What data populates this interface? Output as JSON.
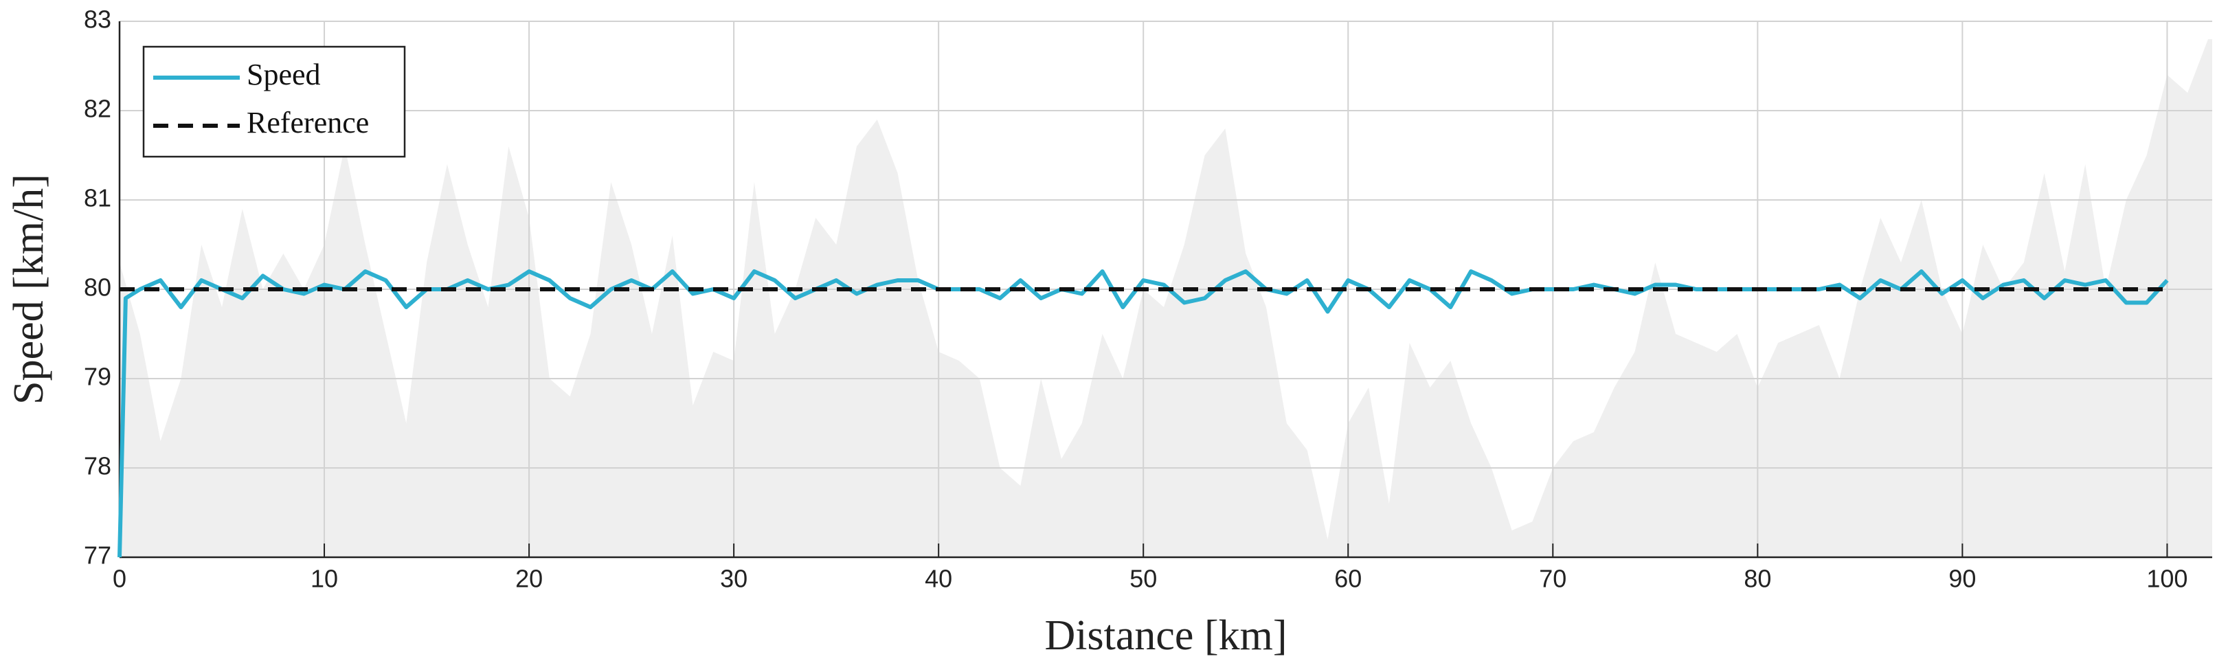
{
  "chart_data": {
    "type": "line",
    "xlabel": "Distance [km]",
    "ylabel": "Speed [km/h]",
    "xlim": [
      0,
      102.2
    ],
    "ylim": [
      77,
      83
    ],
    "xticks": [
      0,
      10,
      20,
      30,
      40,
      50,
      60,
      70,
      80,
      90,
      100
    ],
    "yticks": [
      77,
      78,
      79,
      80,
      81,
      82,
      83
    ],
    "grid": true,
    "legend": "upper left",
    "background_area": {
      "color": "#efefef",
      "x": [
        0,
        1,
        2,
        3,
        4,
        5,
        6,
        7,
        8,
        9,
        10,
        11,
        12,
        13,
        14,
        15,
        16,
        17,
        18,
        19,
        20,
        21,
        22,
        23,
        24,
        25,
        26,
        27,
        28,
        29,
        30,
        31,
        32,
        33,
        34,
        35,
        36,
        37,
        38,
        39,
        40,
        41,
        42,
        43,
        44,
        45,
        46,
        47,
        48,
        49,
        50,
        51,
        52,
        53,
        54,
        55,
        56,
        57,
        58,
        59,
        60,
        61,
        62,
        63,
        64,
        65,
        66,
        67,
        68,
        69,
        70,
        71,
        72,
        73,
        74,
        75,
        76,
        77,
        78,
        79,
        80,
        81,
        82,
        83,
        84,
        85,
        86,
        87,
        88,
        89,
        90,
        91,
        92,
        93,
        94,
        95,
        96,
        97,
        98,
        99,
        100,
        101,
        102,
        102.2
      ],
      "values": [
        80.3,
        79.5,
        78.3,
        79.0,
        80.5,
        79.8,
        80.9,
        80.0,
        80.4,
        80.0,
        80.5,
        81.6,
        80.5,
        79.5,
        78.5,
        80.3,
        81.4,
        80.5,
        79.8,
        81.6,
        80.8,
        79.0,
        78.8,
        79.5,
        81.2,
        80.5,
        79.5,
        80.6,
        78.7,
        79.3,
        79.2,
        81.2,
        79.5,
        80.0,
        80.8,
        80.5,
        81.6,
        81.9,
        81.3,
        80.1,
        79.3,
        79.2,
        79.0,
        78.0,
        77.8,
        79.0,
        78.1,
        78.5,
        79.5,
        79.0,
        80.0,
        79.8,
        80.5,
        81.5,
        81.8,
        80.4,
        79.8,
        78.5,
        78.2,
        77.2,
        78.5,
        78.9,
        77.6,
        79.4,
        78.9,
        79.2,
        78.5,
        78.0,
        77.3,
        77.4,
        78.0,
        78.3,
        78.4,
        78.9,
        79.3,
        80.3,
        79.5,
        79.4,
        79.3,
        79.5,
        78.9,
        79.4,
        79.5,
        79.6,
        79.0,
        80.0,
        80.8,
        80.3,
        81.0,
        80.0,
        79.5,
        80.5,
        80.0,
        80.3,
        81.3,
        80.2,
        81.4,
        80.0,
        81.0,
        81.5,
        82.4,
        82.2,
        82.8,
        82.8
      ]
    },
    "series": [
      {
        "name": "Speed",
        "color": "#2eb0d0",
        "dash": "solid",
        "x": [
          0,
          0.3,
          1,
          2,
          3,
          4,
          5,
          6,
          7,
          8,
          9,
          10,
          11,
          12,
          13,
          14,
          15,
          16,
          17,
          18,
          19,
          20,
          21,
          22,
          23,
          24,
          25,
          26,
          27,
          28,
          29,
          30,
          31,
          32,
          33,
          34,
          35,
          36,
          37,
          38,
          39,
          40,
          41,
          42,
          43,
          44,
          45,
          46,
          47,
          48,
          49,
          50,
          51,
          52,
          53,
          54,
          55,
          56,
          57,
          58,
          59,
          60,
          61,
          62,
          63,
          64,
          65,
          66,
          67,
          68,
          69,
          70,
          71,
          72,
          73,
          74,
          75,
          76,
          77,
          78,
          79,
          80,
          81,
          82,
          83,
          84,
          85,
          86,
          87,
          88,
          89,
          90,
          91,
          92,
          93,
          94,
          95,
          96,
          97,
          98,
          99,
          100
        ],
        "values": [
          77,
          79.9,
          80.0,
          80.1,
          79.8,
          80.1,
          80.0,
          79.9,
          80.15,
          80.0,
          79.95,
          80.05,
          80.0,
          80.2,
          80.1,
          79.8,
          80.0,
          80.0,
          80.1,
          80.0,
          80.05,
          80.2,
          80.1,
          79.9,
          79.8,
          80.0,
          80.1,
          80.0,
          80.2,
          79.95,
          80.0,
          79.9,
          80.2,
          80.1,
          79.9,
          80.0,
          80.1,
          79.95,
          80.05,
          80.1,
          80.1,
          80.0,
          80.0,
          80.0,
          79.9,
          80.1,
          79.9,
          80.0,
          79.95,
          80.2,
          79.8,
          80.1,
          80.05,
          79.85,
          79.9,
          80.1,
          80.2,
          80.0,
          79.95,
          80.1,
          79.75,
          80.1,
          80.0,
          79.8,
          80.1,
          80.0,
          79.8,
          80.2,
          80.1,
          79.95,
          80.0,
          80.0,
          80.0,
          80.05,
          80.0,
          79.95,
          80.05,
          80.05,
          80.0,
          80.0,
          80.0,
          80.0,
          80.0,
          80.0,
          80.0,
          80.05,
          79.9,
          80.1,
          80.0,
          80.2,
          79.95,
          80.1,
          79.9,
          80.05,
          80.1,
          79.9,
          80.1,
          80.05,
          80.1,
          79.85,
          79.85,
          80.1
        ]
      },
      {
        "name": "Reference",
        "color": "#111111",
        "dash": "dashed",
        "x": [
          0,
          100
        ],
        "values": [
          80,
          80
        ]
      }
    ]
  }
}
